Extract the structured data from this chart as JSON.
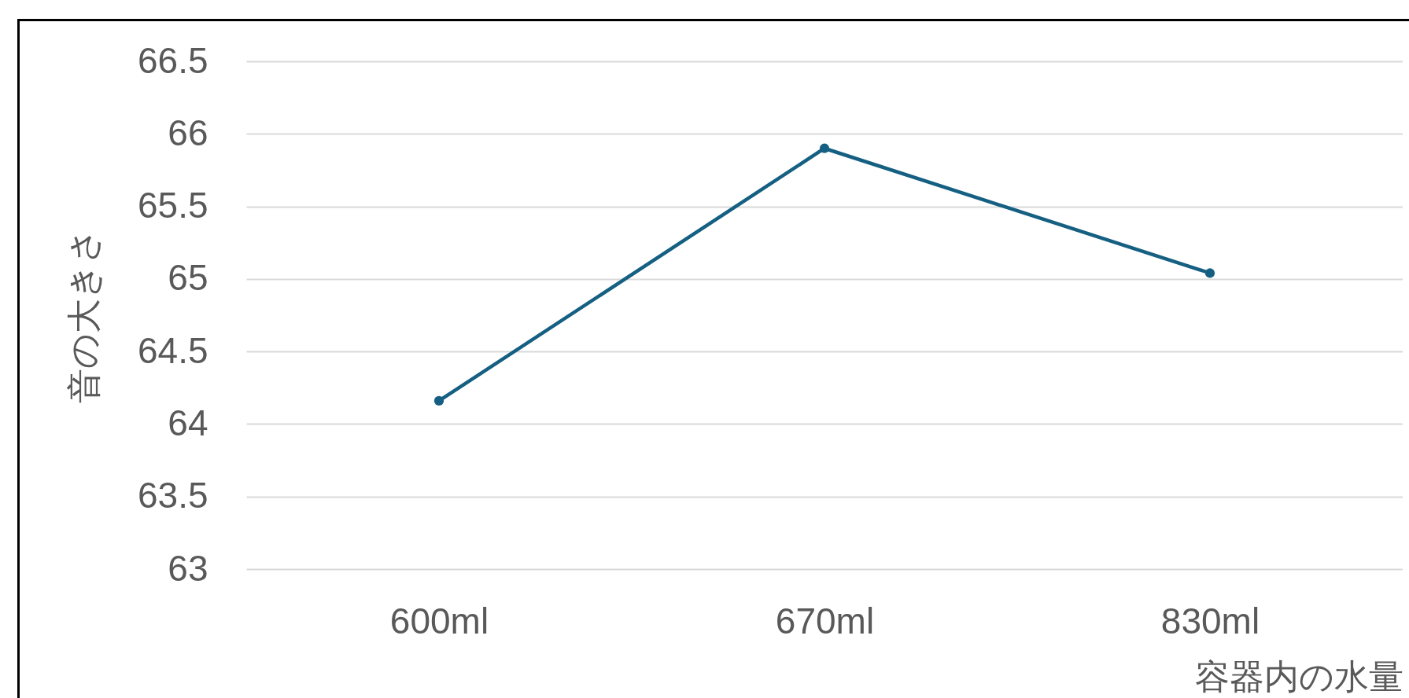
{
  "chart_data": {
    "type": "line",
    "xlabel": "容器内の水量",
    "ylabel": "音の大きさ",
    "categories": [
      "600ml",
      "670ml",
      "830ml"
    ],
    "series": [
      {
        "color": "#156082",
        "values": [
          64.16,
          65.9,
          65.04
        ]
      }
    ],
    "ylim": [
      63,
      66.5
    ],
    "yticks": [
      63,
      63.5,
      64,
      64.5,
      65,
      65.5,
      66,
      66.5
    ],
    "grid": "y",
    "marker": "circle"
  }
}
